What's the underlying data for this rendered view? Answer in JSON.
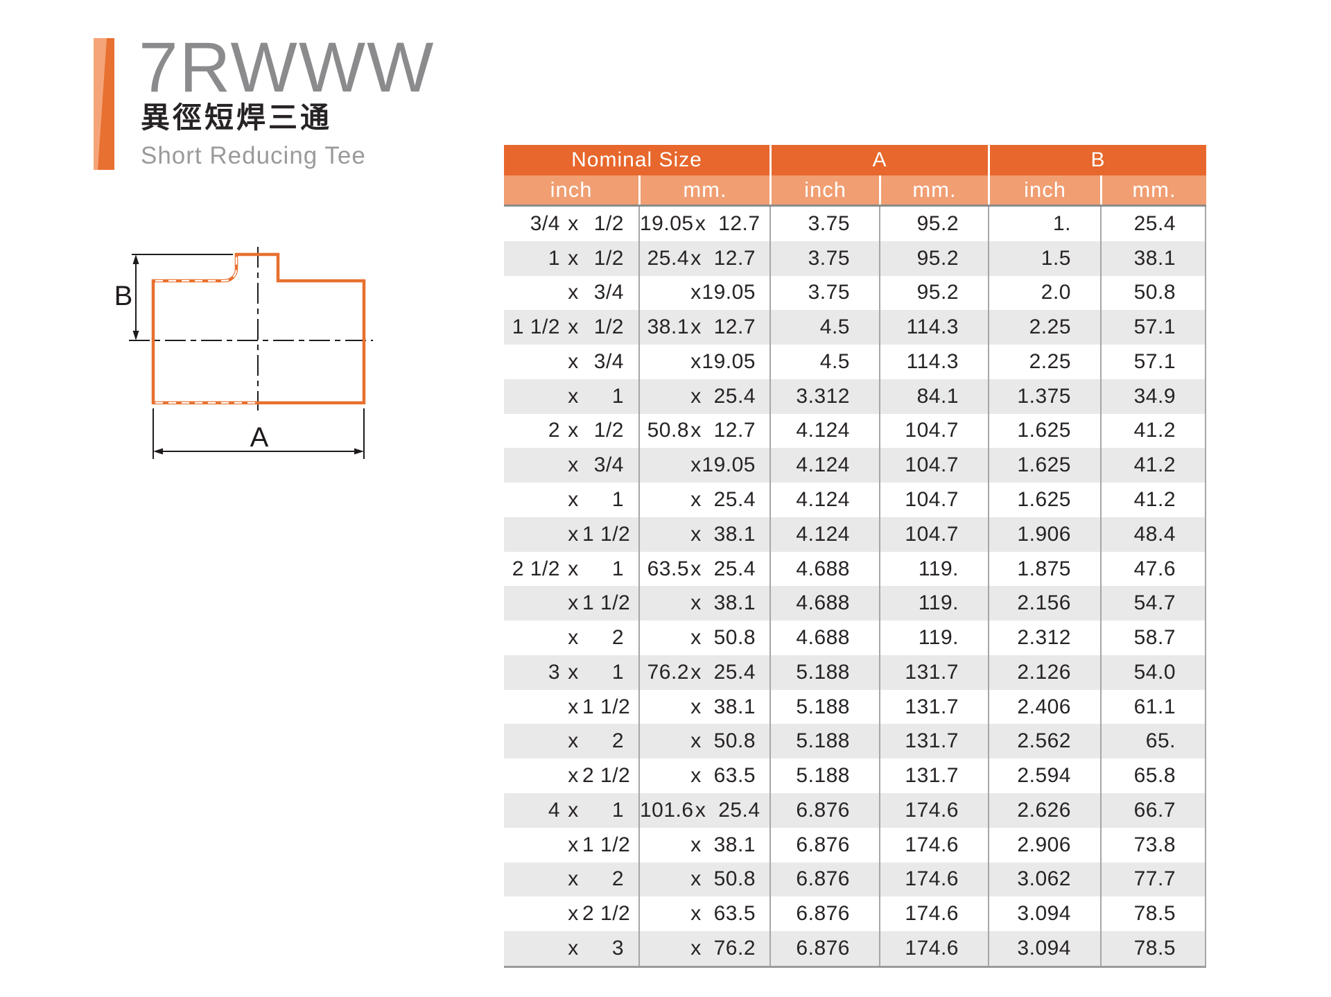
{
  "page": {
    "code": "7RWWW",
    "name_zh": "異徑短焊三通",
    "name_en": "Short Reducing Tee"
  },
  "diagram": {
    "dim_a": "A",
    "dim_b": "B"
  },
  "colors": {
    "accent_dark_orange": "#e7672c",
    "accent_light_orange": "#f09e72",
    "bar_light": "#f4a478",
    "bar_dark": "#e87030",
    "diagram_orange": "#e8702e",
    "row_alt_gray": "#e9e9e9",
    "title_gray": "#8b8b8d",
    "subtitle_gray": "#9c999a",
    "text_black": "#272324"
  },
  "table": {
    "x_sep": "x",
    "groups": [
      "Nominal Size",
      "A",
      "B"
    ],
    "units": [
      "inch",
      "mm.",
      "inch",
      "mm.",
      "inch",
      "mm."
    ],
    "rows": [
      {
        "n_in1": "3/4",
        "n_in2": "1/2",
        "n_mm1": "19.05",
        "n_mm2": "12.7",
        "a_in": "3.75",
        "a_mm": "95.2",
        "b_in": "1.",
        "b_mm": "25.4"
      },
      {
        "n_in1": "1",
        "n_in2": "1/2",
        "n_mm1": "25.4",
        "n_mm2": "12.7",
        "a_in": "3.75",
        "a_mm": "95.2",
        "b_in": "1.5",
        "b_mm": "38.1"
      },
      {
        "n_in1": "",
        "n_in2": "3/4",
        "n_mm1": "",
        "n_mm2": "19.05",
        "a_in": "3.75",
        "a_mm": "95.2",
        "b_in": "2.0",
        "b_mm": "50.8"
      },
      {
        "n_in1": "1 1/2",
        "n_in2": "1/2",
        "n_mm1": "38.1",
        "n_mm2": "12.7",
        "a_in": "4.5",
        "a_mm": "114.3",
        "b_in": "2.25",
        "b_mm": "57.1"
      },
      {
        "n_in1": "",
        "n_in2": "3/4",
        "n_mm1": "",
        "n_mm2": "19.05",
        "a_in": "4.5",
        "a_mm": "114.3",
        "b_in": "2.25",
        "b_mm": "57.1"
      },
      {
        "n_in1": "",
        "n_in2": "1",
        "n_mm1": "",
        "n_mm2": "25.4",
        "a_in": "3.312",
        "a_mm": "84.1",
        "b_in": "1.375",
        "b_mm": "34.9"
      },
      {
        "n_in1": "2",
        "n_in2": "1/2",
        "n_mm1": "50.8",
        "n_mm2": "12.7",
        "a_in": "4.124",
        "a_mm": "104.7",
        "b_in": "1.625",
        "b_mm": "41.2"
      },
      {
        "n_in1": "",
        "n_in2": "3/4",
        "n_mm1": "",
        "n_mm2": "19.05",
        "a_in": "4.124",
        "a_mm": "104.7",
        "b_in": "1.625",
        "b_mm": "41.2"
      },
      {
        "n_in1": "",
        "n_in2": "1",
        "n_mm1": "",
        "n_mm2": "25.4",
        "a_in": "4.124",
        "a_mm": "104.7",
        "b_in": "1.625",
        "b_mm": "41.2"
      },
      {
        "n_in1": "",
        "n_in2": "1 1/2",
        "n_mm1": "",
        "n_mm2": "38.1",
        "a_in": "4.124",
        "a_mm": "104.7",
        "b_in": "1.906",
        "b_mm": "48.4"
      },
      {
        "n_in1": "2 1/2",
        "n_in2": "1",
        "n_mm1": "63.5",
        "n_mm2": "25.4",
        "a_in": "4.688",
        "a_mm": "119.",
        "b_in": "1.875",
        "b_mm": "47.6"
      },
      {
        "n_in1": "",
        "n_in2": "1 1/2",
        "n_mm1": "",
        "n_mm2": "38.1",
        "a_in": "4.688",
        "a_mm": "119.",
        "b_in": "2.156",
        "b_mm": "54.7"
      },
      {
        "n_in1": "",
        "n_in2": "2",
        "n_mm1": "",
        "n_mm2": "50.8",
        "a_in": "4.688",
        "a_mm": "119.",
        "b_in": "2.312",
        "b_mm": "58.7"
      },
      {
        "n_in1": "3",
        "n_in2": "1",
        "n_mm1": "76.2",
        "n_mm2": "25.4",
        "a_in": "5.188",
        "a_mm": "131.7",
        "b_in": "2.126",
        "b_mm": "54.0"
      },
      {
        "n_in1": "",
        "n_in2": "1 1/2",
        "n_mm1": "",
        "n_mm2": "38.1",
        "a_in": "5.188",
        "a_mm": "131.7",
        "b_in": "2.406",
        "b_mm": "61.1"
      },
      {
        "n_in1": "",
        "n_in2": "2",
        "n_mm1": "",
        "n_mm2": "50.8",
        "a_in": "5.188",
        "a_mm": "131.7",
        "b_in": "2.562",
        "b_mm": "65."
      },
      {
        "n_in1": "",
        "n_in2": "2 1/2",
        "n_mm1": "",
        "n_mm2": "63.5",
        "a_in": "5.188",
        "a_mm": "131.7",
        "b_in": "2.594",
        "b_mm": "65.8"
      },
      {
        "n_in1": "4",
        "n_in2": "1",
        "n_mm1": "101.6",
        "n_mm2": "25.4",
        "a_in": "6.876",
        "a_mm": "174.6",
        "b_in": "2.626",
        "b_mm": "66.7"
      },
      {
        "n_in1": "",
        "n_in2": "1 1/2",
        "n_mm1": "",
        "n_mm2": "38.1",
        "a_in": "6.876",
        "a_mm": "174.6",
        "b_in": "2.906",
        "b_mm": "73.8"
      },
      {
        "n_in1": "",
        "n_in2": "2",
        "n_mm1": "",
        "n_mm2": "50.8",
        "a_in": "6.876",
        "a_mm": "174.6",
        "b_in": "3.062",
        "b_mm": "77.7"
      },
      {
        "n_in1": "",
        "n_in2": "2 1/2",
        "n_mm1": "",
        "n_mm2": "63.5",
        "a_in": "6.876",
        "a_mm": "174.6",
        "b_in": "3.094",
        "b_mm": "78.5"
      },
      {
        "n_in1": "",
        "n_in2": "3",
        "n_mm1": "",
        "n_mm2": "76.2",
        "a_in": "6.876",
        "a_mm": "174.6",
        "b_in": "3.094",
        "b_mm": "78.5"
      }
    ]
  }
}
